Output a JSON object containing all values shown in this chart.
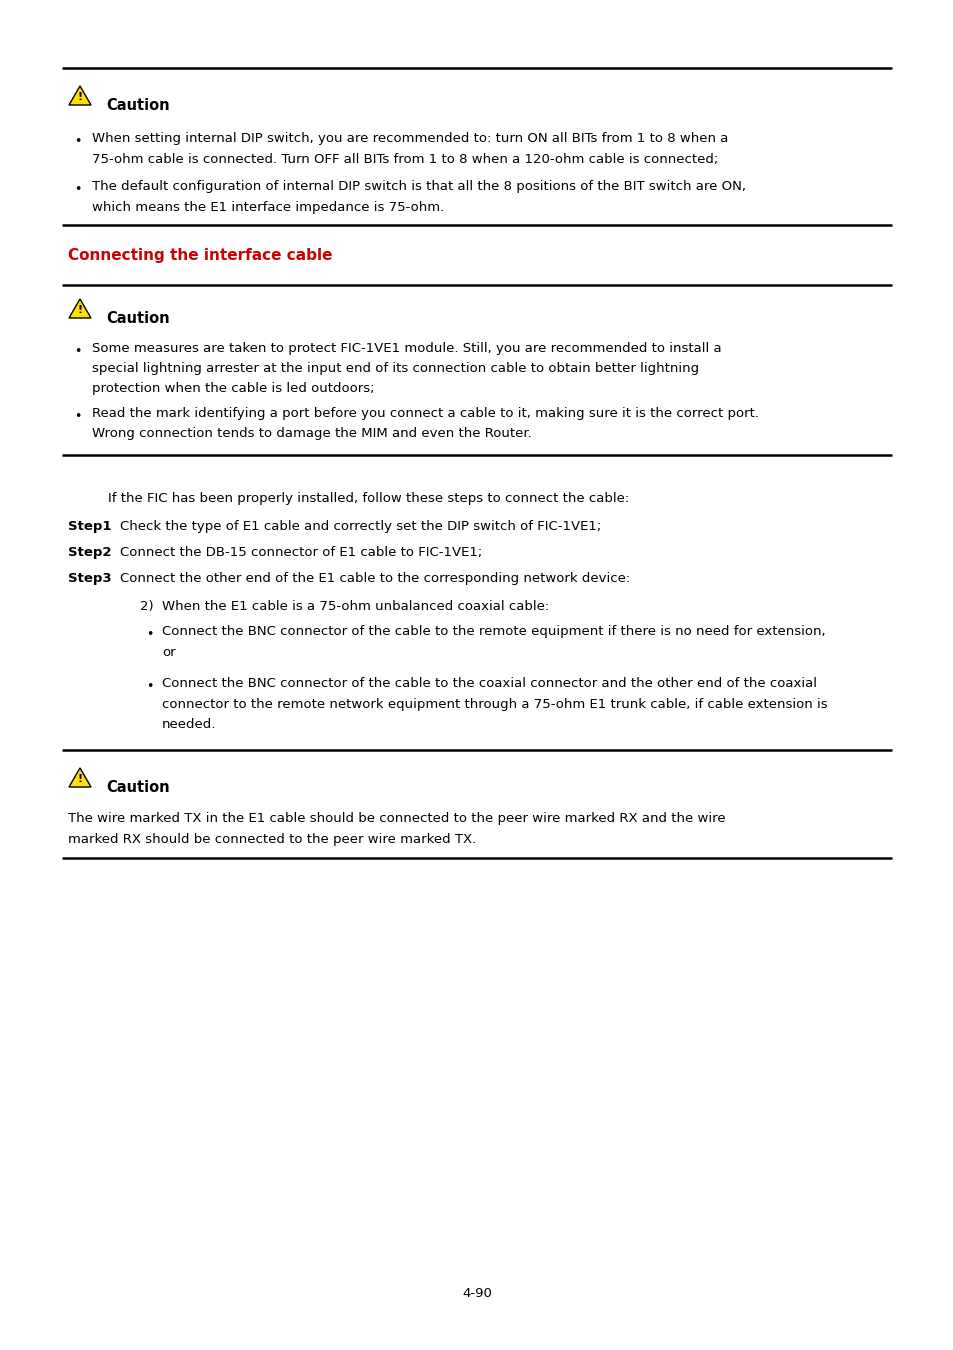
{
  "page_number": "4-90",
  "background_color": "#ffffff",
  "text_color": "#000000",
  "heading_color": "#cc0000",
  "heading_text": "Connecting the interface cable",
  "caution_label": "Caution",
  "section1": {
    "bullet1_line1": "When setting internal DIP switch, you are recommended to: turn ON all BITs from 1 to 8 when a",
    "bullet1_line2": "75-ohm cable is connected. Turn OFF all BITs from 1 to 8 when a 120-ohm cable is connected;",
    "bullet2_line1": "The default configuration of internal DIP switch is that all the 8 positions of the BIT switch are ON,",
    "bullet2_line2": "which means the E1 interface impedance is 75-ohm."
  },
  "section2": {
    "bullet1_line1": "Some measures are taken to protect FIC-1VE1 module. Still, you are recommended to install a",
    "bullet1_line2": "special lightning arrester at the input end of its connection cable to obtain better lightning",
    "bullet1_line3": "protection when the cable is led outdoors;",
    "bullet2_line1": "Read the mark identifying a port before you connect a cable to it, making sure it is the correct port.",
    "bullet2_line2": "Wrong connection tends to damage the MIM and even the Router."
  },
  "intro_line": "If the FIC has been properly installed, follow these steps to connect the cable:",
  "step1": "Check the type of E1 cable and correctly set the DIP switch of FIC-1VE1;",
  "step2": "Connect the DB-15 connector of E1 cable to FIC-1VE1;",
  "step3": "Connect the other end of the E1 cable to the corresponding network device:",
  "sub2": "When the E1 cable is a 75-ohm unbalanced coaxial cable:",
  "sub_bullet1_line1": "Connect the BNC connector of the cable to the remote equipment if there is no need for extension,",
  "sub_bullet1_line2": "or",
  "sub_bullet2_line1": "Connect the BNC connector of the cable to the coaxial connector and the other end of the coaxial",
  "sub_bullet2_line2": "connector to the remote network equipment through a 75-ohm E1 trunk cable, if cable extension is",
  "sub_bullet2_line3": "needed.",
  "caution3_line1": "The wire marked TX in the E1 cable should be connected to the peer wire marked RX and the wire",
  "caution3_line2": "marked RX should be connected to the peer wire marked TX."
}
